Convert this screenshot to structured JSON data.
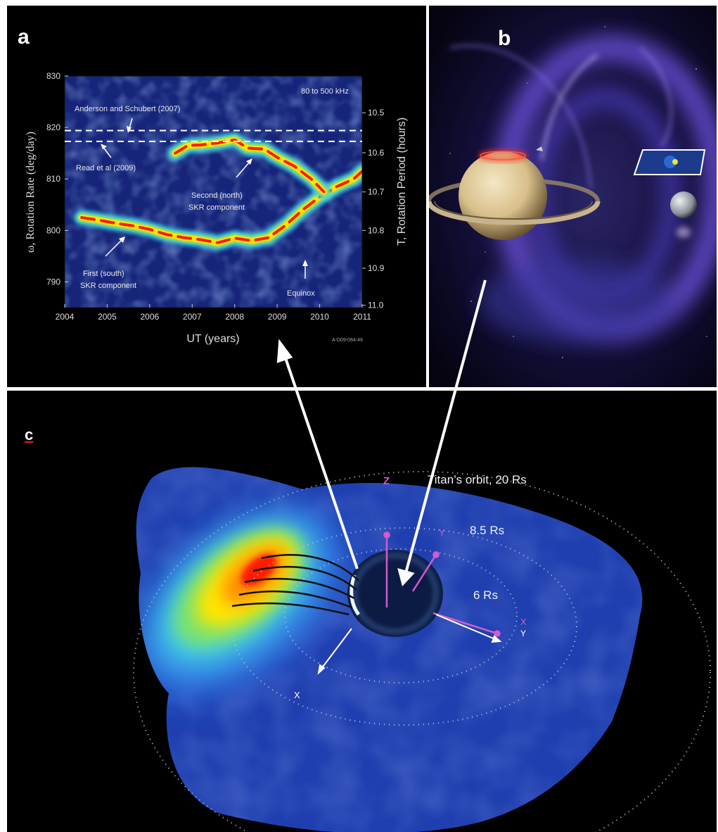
{
  "figure": {
    "panel_a": {
      "letter": "a",
      "frequency_label": "80 to 500 kHz",
      "annotations": {
        "anderson": "Anderson and Schubert (2007)",
        "read": "Read et al (2009)",
        "second_line1": "Second (north)",
        "second_line2": "SKR component",
        "first_line1": "First (south)",
        "first_line2": "SKR component",
        "equinox": "Equinox"
      },
      "figure_id": "A-D09-064-46"
    },
    "panel_b": {
      "letter": "b"
    },
    "panel_c": {
      "letter": "c",
      "titan_orbit": "Titan’s orbit, 20 Rs",
      "ring_85": "8.5 Rs",
      "ring_6": "6 Rs",
      "axis_z": "Z",
      "axis_y_magenta": "Y",
      "axis_x_magenta": "X",
      "axis_y_white": "Y",
      "axis_x_white": "X"
    },
    "colors": {
      "hot": "#ff1a00",
      "warm": "#ffe600",
      "cool": "#1f3fb0",
      "background": "#000000",
      "magenta_axis": "#d45ad0"
    }
  },
  "chart_data": {
    "type": "heatmap",
    "title": "",
    "xlabel": "UT (years)",
    "ylabel": "ω, Rotation Rate (deg/day)",
    "ylabel_right": "T, Rotation Period (hours)",
    "xlim": [
      2004,
      2011
    ],
    "ylim": [
      785,
      830
    ],
    "x_ticks": [
      "2004",
      "2005",
      "2006",
      "2007",
      "2008",
      "2009",
      "2010",
      "2011"
    ],
    "y_ticks": [
      "790",
      "800",
      "810",
      "820",
      "830"
    ],
    "y_right_ticks": [
      "10.5",
      "10.6",
      "10.7",
      "10.8",
      "10.9",
      "11.0"
    ],
    "reference_lines": [
      {
        "name": "Anderson and Schubert (2007)",
        "y": 819.4
      },
      {
        "name": "Read et al (2009)",
        "y": 817.3
      }
    ],
    "series": [
      {
        "name": "First (south) SKR component",
        "x": [
          2004.4,
          2004.8,
          2005.2,
          2005.6,
          2006.0,
          2006.4,
          2006.8,
          2007.2,
          2007.6,
          2008.0,
          2008.4,
          2008.8,
          2009.2,
          2009.6,
          2010.0,
          2010.4,
          2010.8,
          2011.0
        ],
        "values": [
          802.5,
          802.0,
          801.4,
          800.9,
          800.2,
          799.2,
          798.6,
          798.2,
          797.6,
          798.5,
          798.0,
          798.6,
          801.0,
          804.0,
          806.5,
          808.5,
          810.0,
          811.5
        ]
      },
      {
        "name": "Second (north) SKR component",
        "x": [
          2006.6,
          2006.9,
          2007.2,
          2007.6,
          2008.0,
          2008.3,
          2008.7,
          2009.0,
          2009.4,
          2009.8,
          2010.1
        ],
        "values": [
          815.0,
          816.5,
          816.6,
          817.0,
          817.6,
          816.0,
          815.8,
          814.2,
          812.5,
          810.0,
          807.5
        ]
      }
    ]
  }
}
